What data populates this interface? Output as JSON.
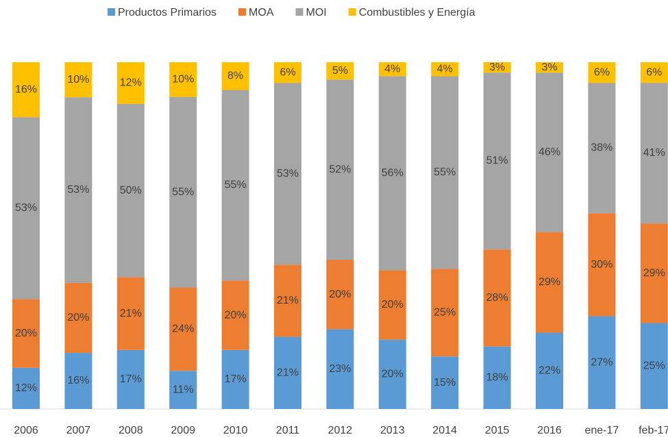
{
  "chart_data": {
    "type": "bar",
    "stacked": "percent",
    "categories": [
      "2006",
      "2007",
      "2008",
      "2009",
      "2010",
      "2011",
      "2012",
      "2013",
      "2014",
      "2015",
      "2016",
      "ene-17",
      "feb-17"
    ],
    "series": [
      {
        "name": "Productos Primarios",
        "color": "#5b9bd5",
        "values": [
          12,
          16,
          17,
          11,
          17,
          21,
          23,
          20,
          15,
          18,
          22,
          27,
          25
        ],
        "value_labels": [
          "12%",
          "16%",
          "17%",
          "11%",
          "17%",
          "21%",
          "23%",
          "20%",
          "15%",
          "18%",
          "22%",
          "27%",
          "25%"
        ]
      },
      {
        "name": "MOA",
        "color": "#ed7d31",
        "values": [
          20,
          20,
          21,
          24,
          20,
          21,
          20,
          20,
          25,
          28,
          29,
          30,
          29
        ],
        "value_labels": [
          "20%",
          "20%",
          "21%",
          "24%",
          "20%",
          "21%",
          "20%",
          "20%",
          "25%",
          "28%",
          "29%",
          "30%",
          "29%"
        ]
      },
      {
        "name": "MOI",
        "color": "#a5a5a5",
        "values": [
          53,
          53,
          50,
          55,
          55,
          53,
          52,
          56,
          55,
          51,
          46,
          38,
          41
        ],
        "value_labels": [
          "53%",
          "53%",
          "50%",
          "55%",
          "55%",
          "53%",
          "52%",
          "56%",
          "55%",
          "51%",
          "46%",
          "38%",
          "41%"
        ]
      },
      {
        "name": "Combustibles y Energía",
        "color": "#ffc000",
        "values": [
          16,
          10,
          12,
          10,
          8,
          6,
          5,
          4,
          4,
          3,
          3,
          6,
          6
        ],
        "value_labels": [
          "16%",
          "10%",
          "12%",
          "10%",
          "8%",
          "6%",
          "5%",
          "4%",
          "4%",
          "3%",
          "3%",
          "6%",
          "6%"
        ]
      }
    ],
    "legend": "top"
  }
}
